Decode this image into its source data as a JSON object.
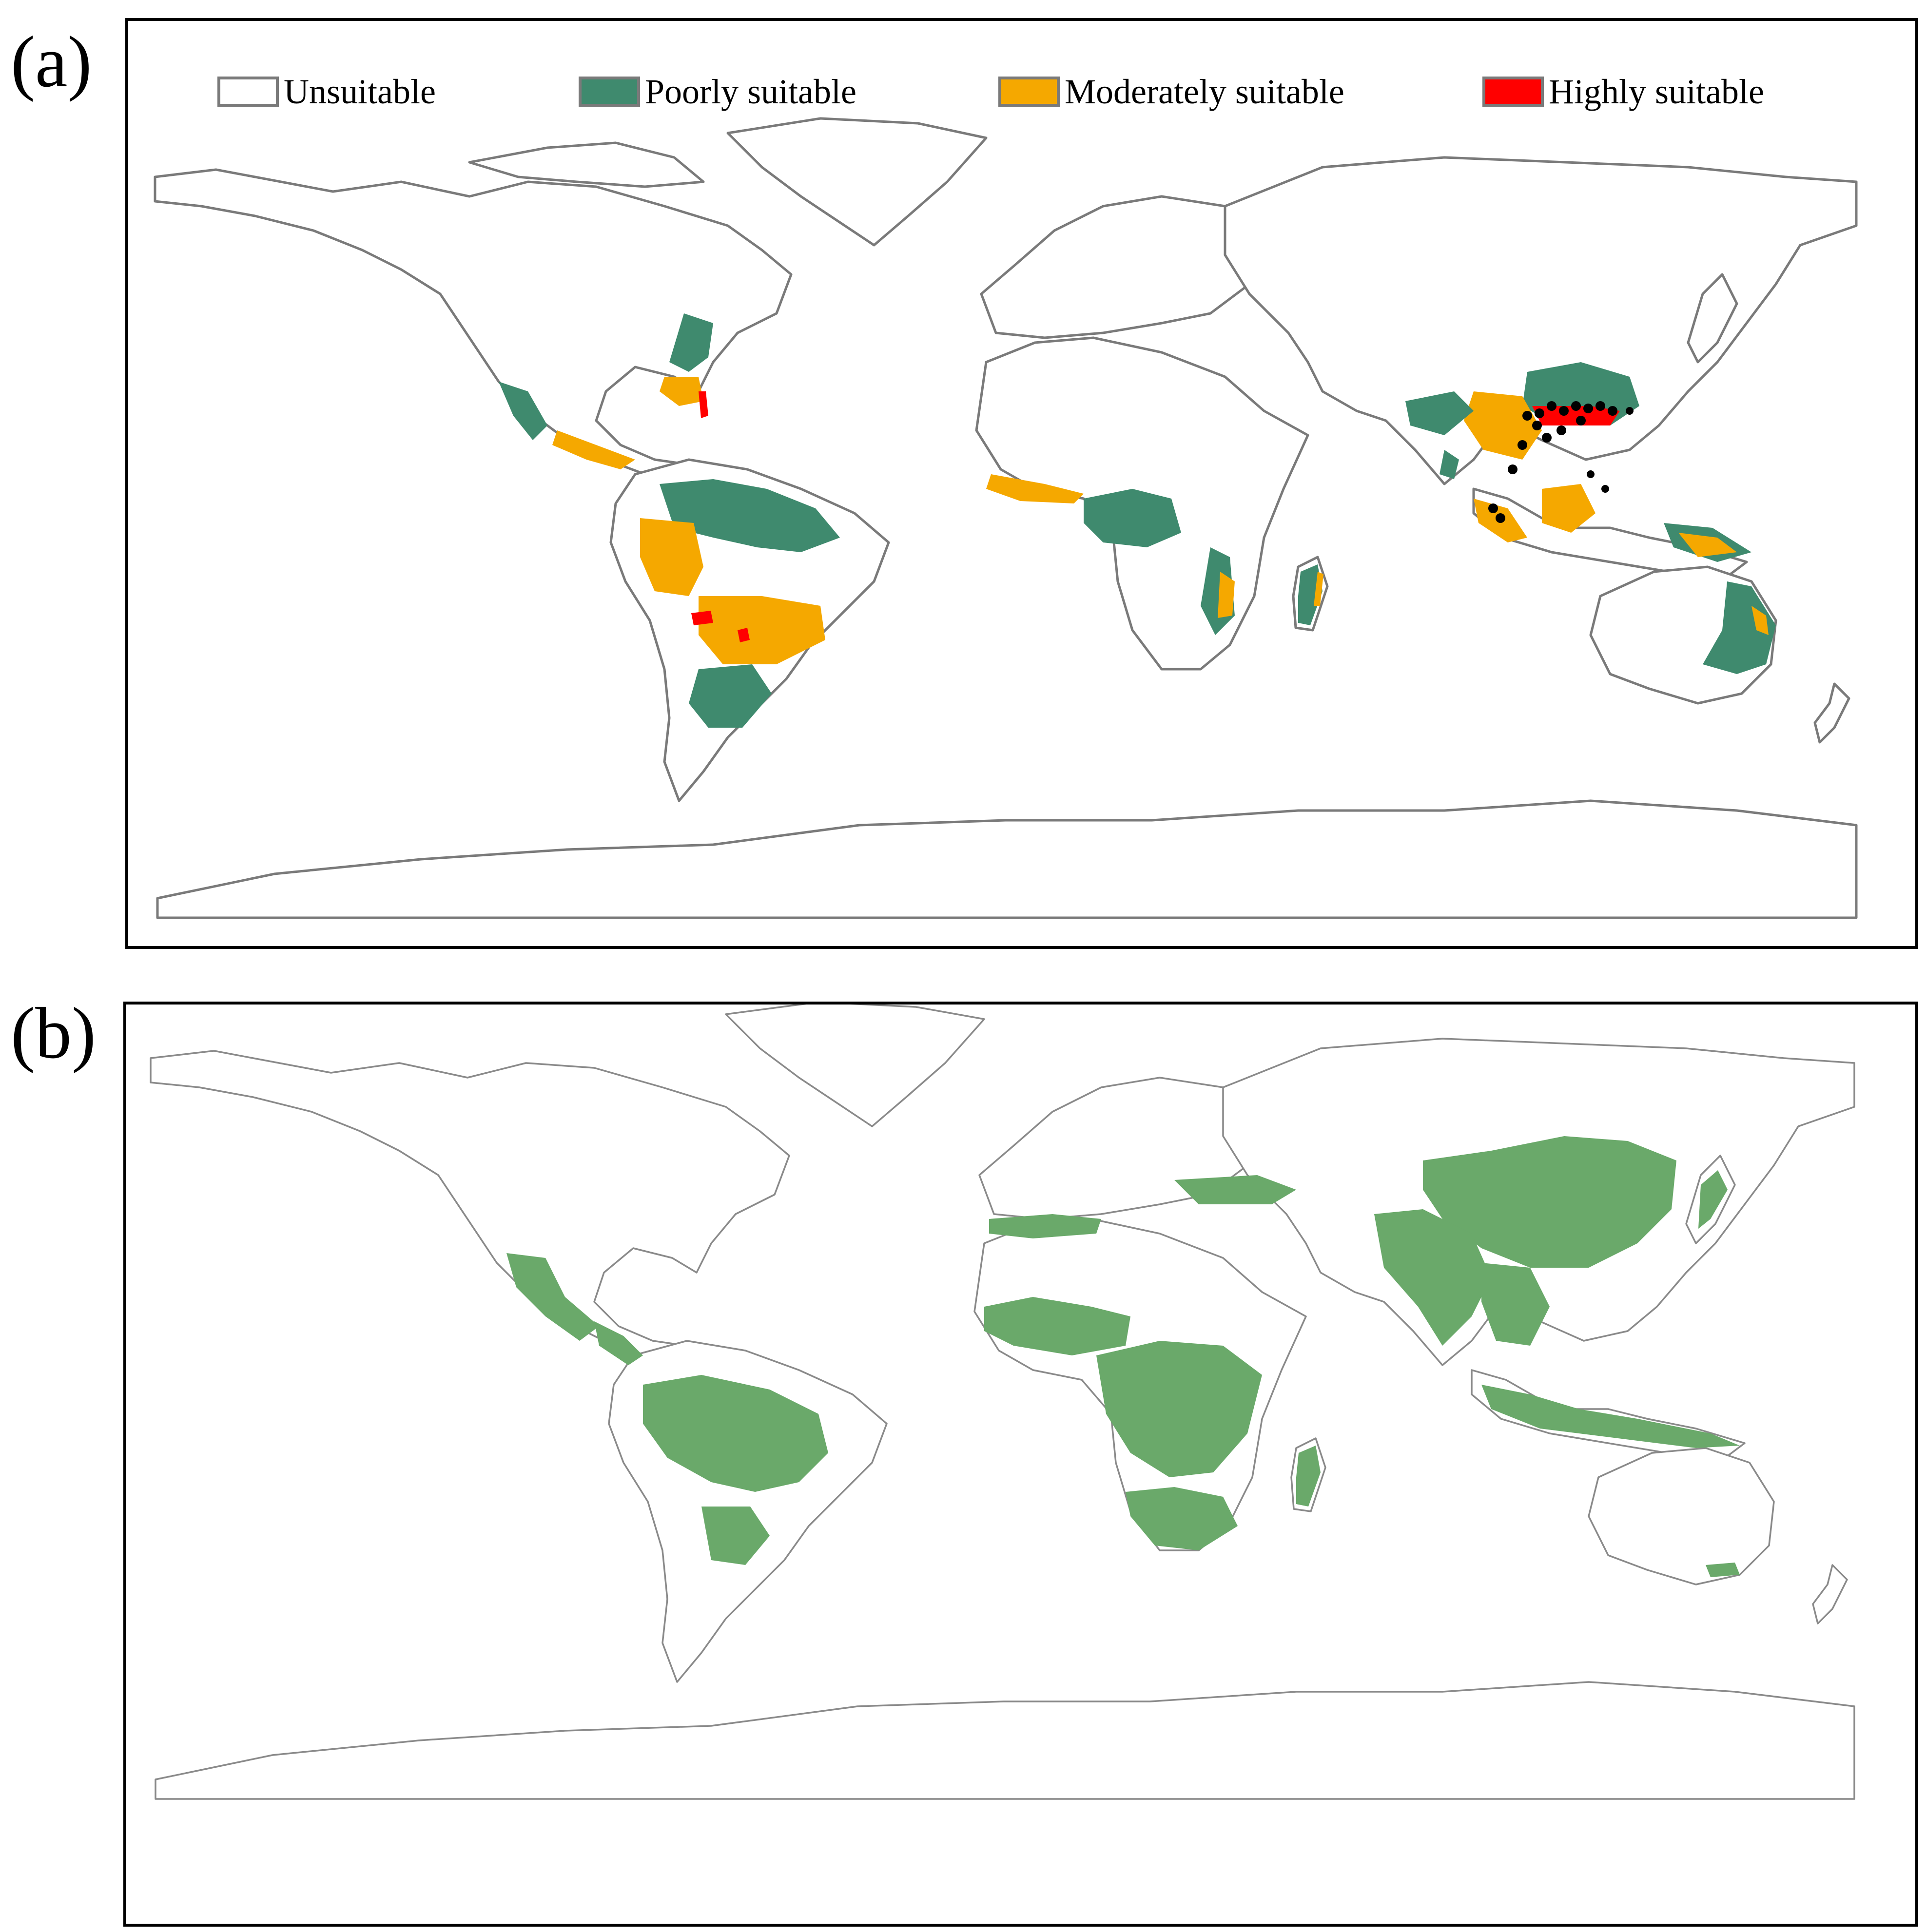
{
  "panels": {
    "a": {
      "label": "(a)",
      "legend": [
        {
          "label": "Unsuitable",
          "color": "#ffffff"
        },
        {
          "label": "Poorly suitable",
          "color": "#3f8a6e"
        },
        {
          "label": "Moderately suitable",
          "color": "#f5a800"
        },
        {
          "label": "Highly suitable",
          "color": "#ff0000"
        }
      ],
      "occurrence_color": "#000000"
    },
    "b": {
      "label": "(b)",
      "fill_color": "#6aa96a"
    }
  },
  "colors": {
    "outline": "#7a7a7a",
    "frame": "#000000"
  }
}
